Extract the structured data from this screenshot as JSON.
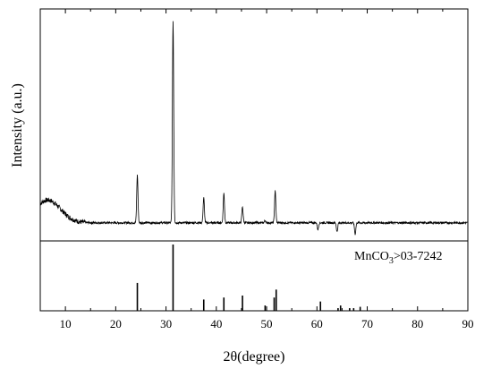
{
  "chart_data": {
    "type": "line",
    "xlabel": "2θ(degree)",
    "ylabel": "Intensity (a.u.)",
    "xlim": [
      5,
      90
    ],
    "x_ticks": [
      10,
      20,
      30,
      40,
      50,
      60,
      70,
      80,
      90
    ],
    "top_panel": {
      "y_units": "relative",
      "ylim": [
        0,
        100
      ],
      "baseline": 8,
      "peaks": [
        {
          "x": 24.3,
          "y": 29
        },
        {
          "x": 31.4,
          "y": 97
        },
        {
          "x": 37.5,
          "y": 19
        },
        {
          "x": 41.5,
          "y": 21
        },
        {
          "x": 45.2,
          "y": 15
        },
        {
          "x": 49.7,
          "y": 9
        },
        {
          "x": 51.7,
          "y": 22
        },
        {
          "x": 60.2,
          "y": 5
        },
        {
          "x": 64.0,
          "y": 4
        },
        {
          "x": 67.6,
          "y": 3
        }
      ]
    },
    "bottom_panel": {
      "label": "MnCO3>03-7242",
      "label_main": "MnCO",
      "label_sub": "3",
      "label_tail": ">03-7242",
      "ylim": [
        0,
        100
      ],
      "sticks": [
        {
          "x": 24.3,
          "y": 42
        },
        {
          "x": 31.4,
          "y": 100
        },
        {
          "x": 37.5,
          "y": 17
        },
        {
          "x": 41.5,
          "y": 20
        },
        {
          "x": 45.2,
          "y": 23
        },
        {
          "x": 49.7,
          "y": 8
        },
        {
          "x": 51.5,
          "y": 20
        },
        {
          "x": 51.9,
          "y": 32
        },
        {
          "x": 60.7,
          "y": 14
        },
        {
          "x": 64.2,
          "y": 4
        },
        {
          "x": 64.7,
          "y": 8
        },
        {
          "x": 66.5,
          "y": 4
        },
        {
          "x": 67.3,
          "y": 4
        },
        {
          "x": 68.6,
          "y": 6
        }
      ]
    }
  }
}
